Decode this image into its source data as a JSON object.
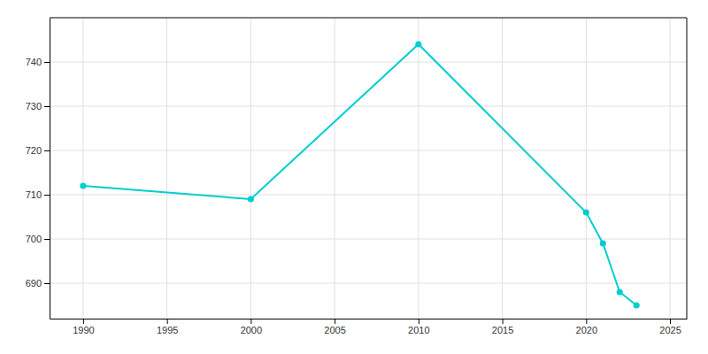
{
  "chart_data": {
    "type": "line",
    "x": [
      1990,
      2000,
      2010,
      2020,
      2021,
      2022,
      2023
    ],
    "values": [
      712,
      709,
      744,
      706,
      699,
      688,
      685
    ],
    "color": "#00CED1",
    "marker": "circle",
    "xlim": [
      1988,
      2026
    ],
    "ylim": [
      682,
      750
    ],
    "xticks": [
      1990,
      1995,
      2000,
      2005,
      2010,
      2015,
      2020,
      2025
    ],
    "yticks": [
      690,
      700,
      710,
      720,
      730,
      740
    ],
    "grid": true
  }
}
